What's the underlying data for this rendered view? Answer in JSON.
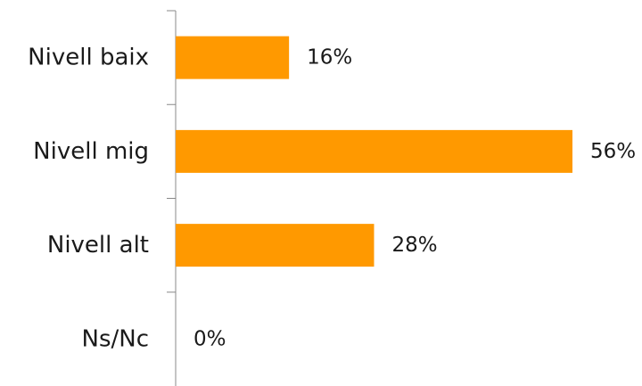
{
  "chart_data": {
    "type": "bar",
    "orientation": "horizontal",
    "categories": [
      "Nivell baix",
      "Nivell mig",
      "Nivell alt",
      "Ns/Nc"
    ],
    "values": [
      16,
      56,
      28,
      0
    ],
    "value_labels": [
      "16%",
      "56%",
      "28%",
      "0%"
    ],
    "unit": "%",
    "xlim": [
      0,
      56
    ],
    "grid": false,
    "legend": "none",
    "bar_color": "#FF9900"
  }
}
